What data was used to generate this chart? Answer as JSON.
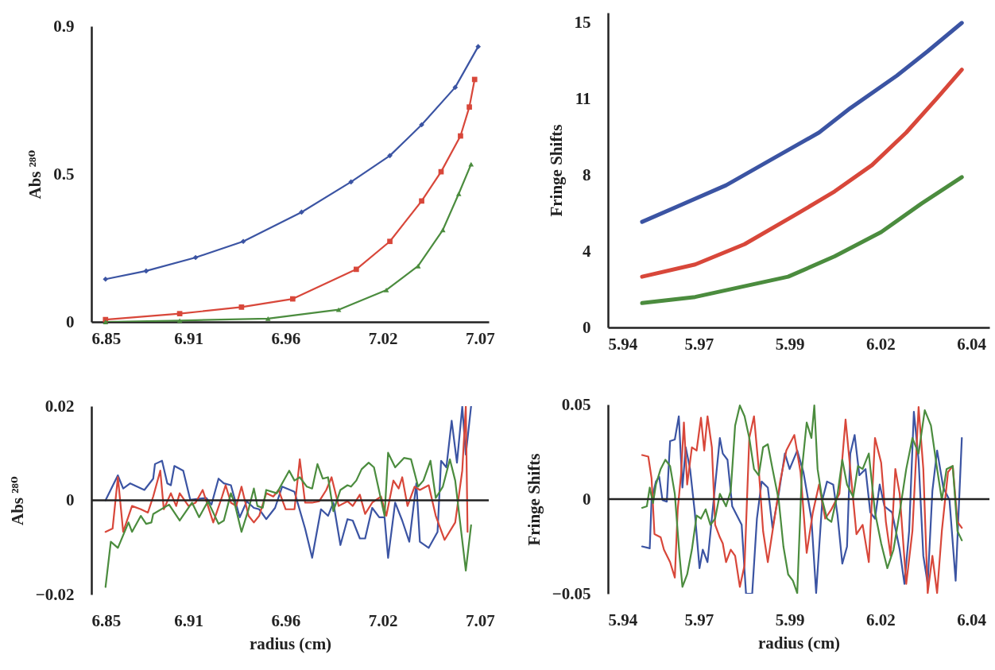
{
  "chart_data": [
    {
      "type": "line",
      "ylabel": "Abs ²⁸⁰",
      "xlim": [
        6.85,
        7.075
      ],
      "xticks": [
        6.85,
        {
          "value": 6.905,
          "label": "6.91"
        },
        6.96,
        {
          "value": 7.015,
          "label": "7.02"
        },
        7.07
      ],
      "ylim": [
        0,
        0.9
      ],
      "yticks": [
        0,
        {
          "value": 0.45,
          "label": "0.5"
        },
        0.9
      ],
      "series": [
        {
          "color": "#3b54a3",
          "marker": "diamond",
          "x": [
            6.858,
            6.881,
            6.909,
            6.936,
            6.969,
            6.997,
            7.019,
            7.037,
            7.056,
            7.069
          ],
          "values": [
            0.13,
            0.155,
            0.196,
            0.245,
            0.334,
            0.426,
            0.506,
            0.6,
            0.714,
            0.838
          ]
        },
        {
          "color": "#d8473a",
          "marker": "square",
          "x": [
            6.858,
            6.9,
            6.935,
            6.964,
            7.0,
            7.019,
            7.037,
            7.048,
            7.059,
            7.064,
            7.067
          ],
          "values": [
            0.007,
            0.025,
            0.045,
            0.07,
            0.16,
            0.245,
            0.368,
            0.457,
            0.566,
            0.654,
            0.738
          ]
        },
        {
          "color": "#4b8c3e",
          "marker": "triangle",
          "x": [
            6.858,
            6.9,
            6.95,
            6.99,
            7.017,
            7.035,
            7.049,
            7.058,
            7.065
          ],
          "values": [
            0.0,
            0.004,
            0.01,
            0.037,
            0.097,
            0.17,
            0.28,
            0.39,
            0.48
          ]
        }
      ]
    },
    {
      "type": "line",
      "ylabel": "Fringe Shifts",
      "xlim": [
        5.94,
        6.045
      ],
      "xticks": [
        5.94,
        {
          "value": 5.965,
          "label": "5.97"
        },
        5.99,
        {
          "value": 6.015,
          "label": "6.02"
        },
        6.04
      ],
      "ylim": [
        0,
        15.5
      ],
      "yticks": [
        0,
        {
          "value": 3.75,
          "label": "4"
        },
        {
          "value": 7.5,
          "label": "8"
        },
        {
          "value": 11.25,
          "label": "11"
        },
        15
      ],
      "series": [
        {
          "color": "#3b54a3",
          "x": [
            5.9494,
            5.9725,
            5.9853,
            5.9981,
            6.0067,
            6.0195,
            6.028,
            6.0374
          ],
          "values": [
            5.2,
            7.0,
            8.3,
            9.6,
            10.8,
            12.4,
            13.6,
            15.0
          ]
        },
        {
          "color": "#d8473a",
          "x": [
            5.9494,
            5.964,
            5.9776,
            5.9921,
            6.0024,
            6.0127,
            6.0221,
            6.0306,
            6.0374
          ],
          "values": [
            2.5,
            3.1,
            4.1,
            5.6,
            6.7,
            8.0,
            9.6,
            11.3,
            12.7
          ]
        },
        {
          "color": "#4b8c3e",
          "x": [
            5.9494,
            5.964,
            5.9768,
            5.9896,
            6.0024,
            6.0152,
            6.0263,
            6.0374
          ],
          "values": [
            1.2,
            1.5,
            2.0,
            2.5,
            3.5,
            4.7,
            6.1,
            7.4
          ]
        }
      ]
    },
    {
      "type": "line",
      "ylabel": "Abs ²⁸⁰",
      "xlabel": "radius (cm)",
      "xlim": [
        6.85,
        7.075
      ],
      "xticks": [
        6.85,
        {
          "value": 6.905,
          "label": "6.91"
        },
        6.96,
        {
          "value": 7.015,
          "label": "7.02"
        },
        7.07
      ],
      "ylim": [
        -0.02,
        0.02
      ],
      "yticks": [
        -0.02,
        0,
        0.02
      ],
      "ref_lines": [
        {
          "axis": "y",
          "value": 0
        }
      ],
      "series": [
        {
          "color": "#3b54a3",
          "x": [
            6.858,
            6.865,
            6.868,
            6.872,
            6.88,
            6.885,
            6.886,
            6.89,
            6.893,
            6.895,
            6.897,
            6.902,
            6.906,
            6.915,
            6.918,
            6.922,
            6.925,
            6.929,
            6.934,
            6.938,
            6.942,
            6.945,
            6.949,
            6.954,
            6.958,
            6.965,
            6.971,
            6.975,
            6.98,
            6.984,
            6.987,
            6.991,
            6.995,
            6.998,
            7.002,
            7.005,
            7.009,
            7.013,
            7.016,
            7.018,
            7.022,
            7.026,
            7.03,
            7.034,
            7.036,
            7.041,
            7.046,
            7.048,
            7.051,
            7.054,
            7.057,
            7.06,
            7.062,
            7.065
          ],
          "values": [
            0.0,
            0.0053,
            0.0025,
            0.0036,
            0.0022,
            0.0046,
            0.0077,
            0.0084,
            0.0036,
            0.0032,
            0.0073,
            0.0063,
            0.0001,
            0.0005,
            -0.0009,
            0.0046,
            0.0036,
            0.0032,
            -0.0036,
            -0.0002,
            -0.0016,
            -0.0019,
            -0.004,
            -0.0016,
            0.0029,
            0.0018,
            -0.006,
            -0.0122,
            -0.0019,
            -0.0033,
            -0.0005,
            -0.0095,
            -0.004,
            -0.0043,
            -0.0081,
            -0.0081,
            -0.0016,
            -0.0036,
            -0.0036,
            -0.0122,
            -0.0005,
            -0.0043,
            -0.0088,
            0.0036,
            -0.0088,
            -0.0101,
            -0.0067,
            0.0084,
            0.007,
            0.0169,
            0.008,
            0.0199,
            0.0097,
            0.02
          ]
        },
        {
          "color": "#d8473a",
          "x": [
            6.858,
            6.862,
            6.865,
            6.868,
            6.873,
            6.878,
            6.882,
            6.885,
            6.889,
            6.891,
            6.895,
            6.898,
            6.9,
            6.905,
            6.909,
            6.913,
            6.916,
            6.919,
            6.924,
            6.926,
            6.929,
            6.932,
            6.935,
            6.939,
            6.942,
            6.945,
            6.949,
            6.953,
            6.956,
            6.96,
            6.963,
            6.965,
            6.968,
            6.971,
            6.975,
            6.979,
            6.983,
            6.986,
            6.99,
            6.995,
            6.998,
            7.002,
            7.005,
            7.009,
            7.014,
            7.017,
            7.021,
            7.024,
            7.026,
            7.029,
            7.033,
            7.036,
            7.041,
            7.045,
            7.05,
            7.056,
            7.06,
            7.062,
            7.063
          ],
          "values": [
            -0.0067,
            -0.006,
            0.0049,
            -0.0067,
            -0.0012,
            -0.0019,
            -0.0026,
            0.0008,
            0.0063,
            -0.0019,
            0.0015,
            -0.0012,
            0.0015,
            -0.0012,
            -0.0005,
            0.0022,
            -0.0012,
            -0.0047,
            0.0008,
            0.0032,
            -0.0005,
            -0.0012,
            0.0029,
            -0.0033,
            -0.0047,
            -0.0033,
            0.0015,
            0.0008,
            0.0022,
            -0.0019,
            -0.0019,
            -0.0019,
            0.0087,
            -0.0005,
            -0.0005,
            -0.0002,
            0.0022,
            0.0049,
            -0.0012,
            -0.0002,
            -0.0012,
            0.0012,
            -0.0029,
            -0.0005,
            0.0008,
            -0.0033,
            0.0042,
            0.0025,
            0.0049,
            -0.0012,
            0.0029,
            0.0022,
            0.0032,
            -0.0033,
            -0.0084,
            -0.0047,
            0.0063,
            0.02,
            -0.0067
          ]
        },
        {
          "color": "#4b8c3e",
          "x": [
            6.858,
            6.861,
            6.865,
            6.871,
            6.873,
            6.878,
            6.881,
            6.884,
            6.885,
            6.894,
            6.9,
            6.907,
            6.911,
            6.916,
            6.922,
            6.925,
            6.929,
            6.931,
            6.935,
            6.939,
            6.942,
            6.944,
            6.947,
            6.949,
            6.955,
            6.958,
            6.962,
            6.965,
            6.968,
            6.972,
            6.975,
            6.978,
            6.981,
            6.984,
            6.987,
            6.991,
            6.995,
            6.997,
            7.0,
            7.003,
            7.007,
            7.01,
            7.016,
            7.018,
            7.022,
            7.027,
            7.031,
            7.035,
            7.038,
            7.042,
            7.045,
            7.049,
            7.053,
            7.056,
            7.062,
            7.065
          ],
          "values": [
            -0.0184,
            -0.0088,
            -0.0101,
            -0.0047,
            -0.0067,
            -0.0033,
            -0.005,
            -0.0047,
            -0.0029,
            -0.0009,
            -0.0043,
            -0.0005,
            -0.0036,
            -0.0002,
            -0.005,
            -0.0043,
            0.0015,
            -0.0005,
            -0.0067,
            -0.0019,
            0.0025,
            -0.0012,
            -0.0016,
            0.0022,
            0.0015,
            0.0036,
            0.0063,
            0.0042,
            0.0049,
            0.0029,
            0.0025,
            0.0077,
            0.0046,
            0.0049,
            -0.0023,
            0.0022,
            0.0032,
            0.0029,
            0.0042,
            0.0066,
            0.008,
            0.007,
            -0.0033,
            0.0101,
            0.007,
            0.009,
            0.0087,
            0.0029,
            0.0042,
            0.0084,
            0.0005,
            0.0029,
            0.0087,
            0.0042,
            -0.0149,
            -0.0053
          ]
        }
      ]
    },
    {
      "type": "line",
      "ylabel": "Fringe Shifts",
      "xlabel": "radius (cm)",
      "xlim": [
        5.94,
        6.045
      ],
      "xticks": [
        5.94,
        {
          "value": 5.965,
          "label": "5.97"
        },
        5.99,
        {
          "value": 6.015,
          "label": "6.02"
        },
        6.04
      ],
      "ylim": [
        -0.05,
        0.05
      ],
      "yticks": [
        -0.05,
        0,
        0.05
      ],
      "ref_lines": [
        {
          "axis": "y",
          "value": 0
        }
      ],
      "series": [
        {
          "color": "#3b54a3",
          "x": [
            5.9494,
            5.9515,
            5.952,
            5.9532,
            5.9541,
            5.955,
            5.9562,
            5.9571,
            5.9584,
            5.9595,
            5.9605,
            5.9614,
            5.9626,
            5.9639,
            5.9652,
            5.9661,
            5.9674,
            5.9691,
            5.9708,
            5.9716,
            5.9729,
            5.9742,
            5.9768,
            5.978,
            5.9797,
            5.981,
            5.9823,
            5.984,
            5.9853,
            5.987,
            5.9887,
            5.99,
            5.9921,
            5.9938,
            5.996,
            5.9973,
            5.999,
            6.0003,
            6.002,
            6.0032,
            6.0045,
            6.0058,
            6.0067,
            6.0079,
            6.0092,
            6.0109,
            6.0122,
            6.0135,
            6.0148,
            6.0161,
            6.0182,
            6.0203,
            6.0216,
            6.0229,
            6.0242,
            6.0255,
            6.0268,
            6.028,
            6.0293,
            6.0306,
            6.0323,
            6.034,
            6.0357,
            6.0374
          ],
          "values": [
            -0.025,
            -0.026,
            -0.0005,
            0.0093,
            0.0118,
            -0.0005,
            -0.0013,
            0.0307,
            0.0315,
            0.0438,
            0.0061,
            0.0274,
            0.0159,
            -0.007,
            -0.0365,
            -0.0267,
            -0.0333,
            -0.0005,
            0.0323,
            0.0241,
            0.0208,
            -0.0038,
            -0.0136,
            -0.05,
            -0.05,
            -0.0103,
            0.0093,
            0.0061,
            -0.0152,
            0.0028,
            0.0241,
            0.0159,
            0.0257,
            0.0143,
            -0.0103,
            -0.0497,
            -0.0005,
            0.0093,
            0.0077,
            -0.0087,
            -0.0341,
            -0.0251,
            0.0241,
            0.0339,
            0.0126,
            0.0159,
            -0.007,
            -0.0103,
            0.0077,
            -0.0038,
            -0.007,
            -0.0267,
            -0.0448,
            -0.0169,
            0.0462,
            0.0208,
            -0.03,
            -0.0448,
            0.0044,
            0.0257,
            0.0061,
            -0.0005,
            -0.0431,
            0.0323
          ]
        },
        {
          "color": "#d8473a",
          "x": [
            5.9494,
            5.9511,
            5.952,
            5.9528,
            5.9545,
            5.9554,
            5.9571,
            5.9584,
            5.9592,
            5.9601,
            5.9609,
            5.9618,
            5.9631,
            5.9644,
            5.9656,
            5.9665,
            5.9674,
            5.9686,
            5.9695,
            5.9708,
            5.9716,
            5.9725,
            5.9738,
            5.975,
            5.9763,
            5.9776,
            5.9789,
            5.9802,
            5.9815,
            5.9827,
            5.984,
            5.9853,
            5.9874,
            5.9891,
            5.9913,
            5.993,
            5.9947,
            5.9964,
            5.9981,
            5.9998,
            6.0015,
            6.0037,
            6.0054,
            6.0067,
            6.0084,
            6.0101,
            6.0118,
            6.0135,
            6.0152,
            6.0165,
            6.0178,
            6.0191,
            6.0203,
            6.0221,
            6.0238,
            6.0255,
            6.0268,
            6.028,
            6.0293,
            6.0306,
            6.0319,
            6.0336,
            6.0349,
            6.0362,
            6.0374
          ],
          "values": [
            0.0233,
            0.0225,
            0.011,
            -0.0185,
            -0.0202,
            -0.0267,
            -0.0333,
            -0.0415,
            -0.0054,
            0.0126,
            0.0405,
            0.0077,
            0.0274,
            0.0257,
            0.043,
            0.0257,
            0.0438,
            0.0274,
            -0.0136,
            -0.0202,
            -0.0234,
            -0.0333,
            -0.0267,
            -0.03,
            -0.0464,
            -0.0349,
            0.0323,
            0.0438,
            0.0159,
            -0.0169,
            -0.0333,
            -0.0169,
            0.0093,
            0.0257,
            0.0339,
            0.0143,
            -0.0284,
            -0.007,
            0.0077,
            -0.0103,
            -0.0054,
            0.0028,
            0.0421,
            0.0159,
            -0.0185,
            -0.0136,
            -0.0333,
            0.0323,
            0.0192,
            -0.012,
            -0.03,
            0.0159,
            0.0028,
            -0.0448,
            -0.0169,
            0.0487,
            0.0159,
            -0.0497,
            -0.03,
            -0.0497,
            -0.0169,
            0.0143,
            0.0175,
            -0.012,
            -0.0152
          ]
        },
        {
          "color": "#4b8c3e",
          "x": [
            5.9494,
            5.9507,
            5.9515,
            5.9524,
            5.9532,
            5.9545,
            5.9558,
            5.9571,
            5.9584,
            5.9597,
            5.9605,
            5.9618,
            5.9631,
            5.9644,
            5.9656,
            5.9669,
            5.9682,
            5.9695,
            5.9708,
            5.9725,
            5.9738,
            5.975,
            5.9763,
            5.9776,
            5.9789,
            5.9802,
            5.9815,
            5.9827,
            5.984,
            5.9853,
            5.987,
            5.9883,
            5.9896,
            5.9909,
            5.9921,
            5.9934,
            5.9947,
            5.996,
            5.9968,
            5.9977,
            5.999,
            6.0003,
            6.0015,
            6.0032,
            6.0045,
            6.0058,
            6.0075,
            6.0088,
            6.0101,
            6.0118,
            6.0135,
            6.0152,
            6.0169,
            6.0186,
            6.0203,
            6.0221,
            6.0238,
            6.0255,
            6.0272,
            6.0289,
            6.0306,
            6.0319,
            6.0332,
            6.0349,
            6.0362,
            6.0374
          ],
          "values": [
            -0.0046,
            -0.0038,
            0.0061,
            -0.0021,
            0.0077,
            0.0159,
            0.0208,
            0.0175,
            0.0028,
            -0.03,
            -0.0464,
            -0.0398,
            -0.0267,
            -0.0087,
            -0.0103,
            -0.0054,
            -0.0136,
            -0.0103,
            0.0028,
            -0.0038,
            0.0044,
            0.0389,
            0.0495,
            0.0438,
            0.0323,
            0.0159,
            0.0126,
            0.0274,
            0.029,
            0.0159,
            -0.0005,
            -0.0251,
            -0.0398,
            -0.0431,
            -0.0497,
            0.0159,
            0.0405,
            0.0323,
            0.0495,
            0.0159,
            -0.0005,
            -0.0103,
            -0.012,
            0.0028,
            0.0208,
            0.0077,
            0.0011,
            0.0175,
            0.0159,
            0.0241,
            -0.007,
            -0.0234,
            -0.0365,
            -0.0267,
            -0.007,
            0.0159,
            0.0323,
            0.0241,
            0.047,
            0.0389,
            0.0159,
            -0.0005,
            0.0159,
            0.0175,
            -0.0169,
            -0.0218
          ]
        }
      ]
    }
  ]
}
